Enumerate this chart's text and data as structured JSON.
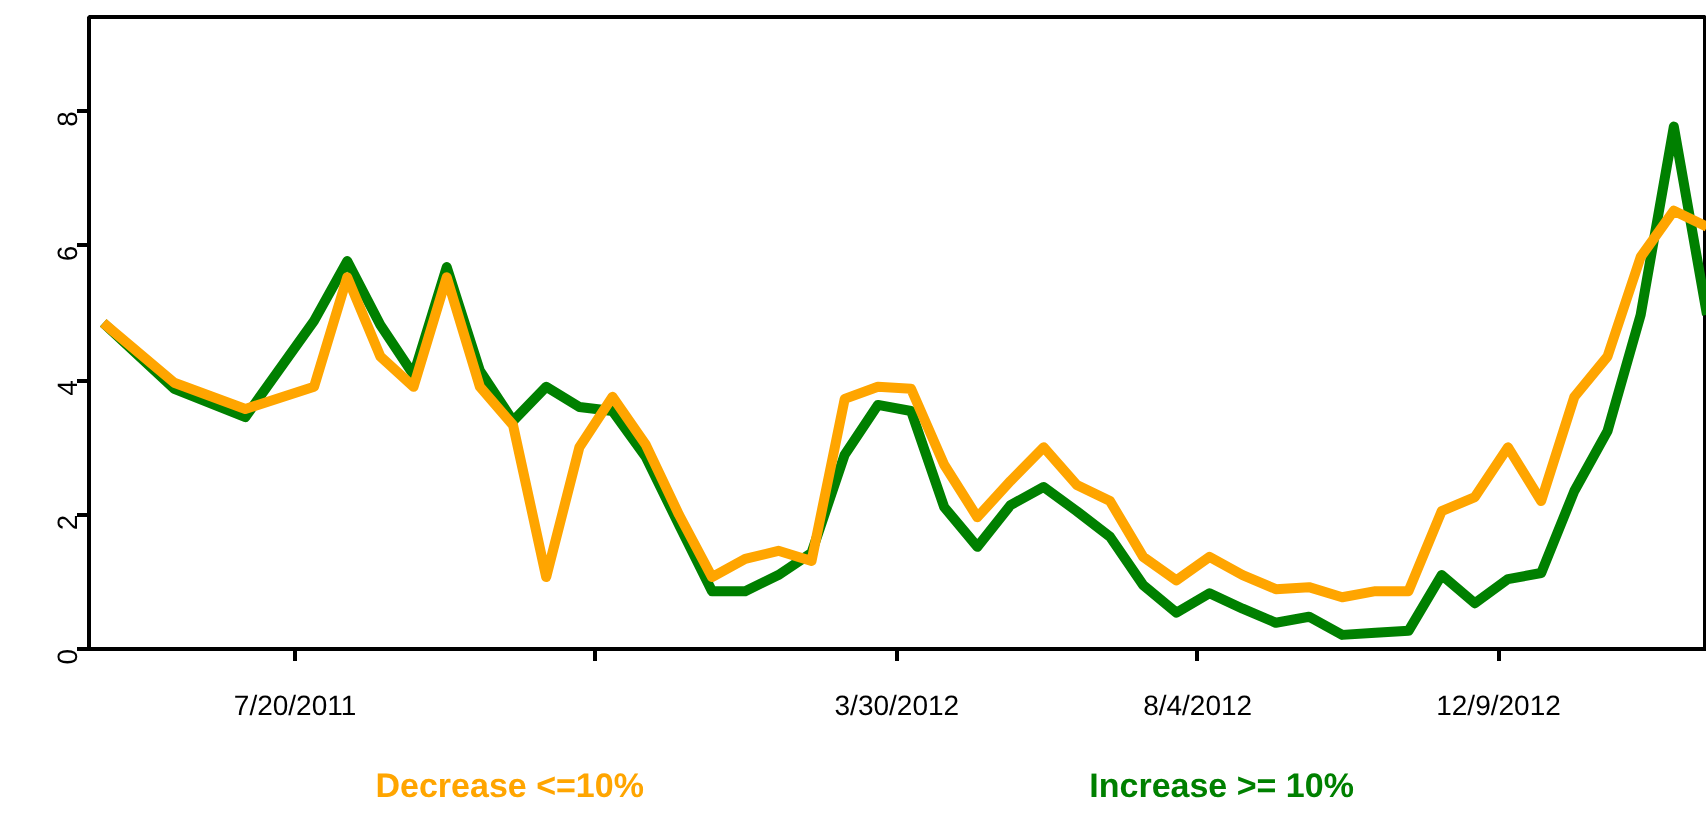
{
  "chart_data": {
    "type": "line",
    "x": [
      "2011-04-30",
      "2011-05-30",
      "2011-06-29",
      "2011-07-28",
      "2011-08-11",
      "2011-08-25",
      "2011-09-08",
      "2011-09-22",
      "2011-10-06",
      "2011-10-20",
      "2011-11-03",
      "2011-11-17",
      "2011-12-01",
      "2011-12-15",
      "2011-12-29",
      "2012-01-12",
      "2012-01-26",
      "2012-02-09",
      "2012-02-23",
      "2012-03-08",
      "2012-03-22",
      "2012-04-05",
      "2012-04-19",
      "2012-05-03",
      "2012-05-17",
      "2012-05-31",
      "2012-06-14",
      "2012-06-28",
      "2012-07-12",
      "2012-07-26",
      "2012-08-09",
      "2012-08-23",
      "2012-09-06",
      "2012-09-20",
      "2012-10-04",
      "2012-10-18",
      "2012-11-01",
      "2012-11-15",
      "2012-11-29",
      "2012-12-13",
      "2012-12-27",
      "2013-01-10",
      "2013-01-24",
      "2013-02-07",
      "2013-02-21",
      "2013-03-07"
    ],
    "series": [
      {
        "name": "Decrease <=10%",
        "color": "#ffa500",
        "values": [
          4.85,
          3.96,
          3.57,
          3.9,
          5.53,
          4.35,
          3.9,
          5.53,
          3.9,
          3.33,
          1.07,
          3.0,
          3.75,
          3.04,
          2.0,
          1.07,
          1.34,
          1.46,
          1.31,
          3.72,
          3.9,
          3.87,
          2.74,
          1.96,
          2.5,
          3.0,
          2.44,
          2.2,
          1.37,
          1.02,
          1.37,
          1.1,
          0.89,
          0.92,
          0.77,
          0.86,
          0.86,
          2.05,
          2.26,
          3.0,
          2.2,
          3.75,
          4.35,
          5.83,
          6.52,
          6.28
        ]
      },
      {
        "name": "Increase >= 10%",
        "color": "#008000",
        "values": [
          4.85,
          3.87,
          3.45,
          4.88,
          5.77,
          4.82,
          4.08,
          5.68,
          4.14,
          3.39,
          3.9,
          3.6,
          3.54,
          2.86,
          1.85,
          0.86,
          0.86,
          1.1,
          1.43,
          2.89,
          3.63,
          3.54,
          2.11,
          1.52,
          2.14,
          2.41,
          2.05,
          1.67,
          0.95,
          0.54,
          0.83,
          0.6,
          0.39,
          0.48,
          0.21,
          0.24,
          0.27,
          1.1,
          0.68,
          1.04,
          1.13,
          2.35,
          3.24,
          4.97,
          7.77,
          4.97
        ]
      }
    ],
    "xlim": [
      "2011-04-24",
      "2013-03-07"
    ],
    "xticks": [
      {
        "value": "2011-07-20",
        "label": "7/20/2011"
      },
      {
        "value": "2011-11-24",
        "label": null
      },
      {
        "value": "2012-03-30",
        "label": "3/30/2012"
      },
      {
        "value": "2012-08-04",
        "label": "8/4/2012"
      },
      {
        "value": "2012-12-09",
        "label": "12/9/2012"
      }
    ],
    "ylim": [
      0,
      9.4
    ],
    "yticks": [
      0,
      2,
      4,
      6,
      8
    ],
    "grid": false,
    "line_style": "solid"
  }
}
